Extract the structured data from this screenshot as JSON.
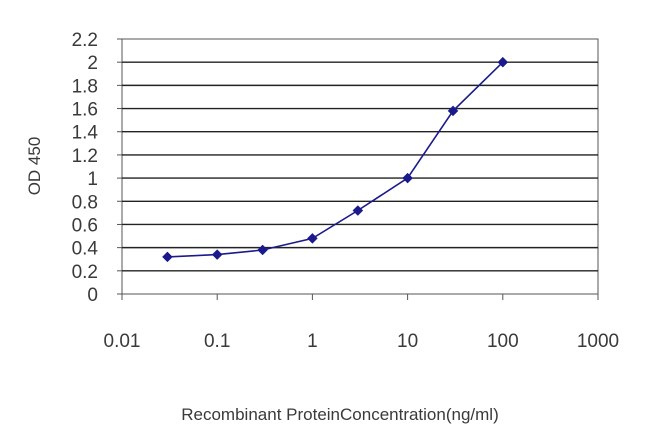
{
  "chart_data": {
    "type": "line",
    "title": "",
    "xlabel": "Recombinant ProteinConcentration(ng/ml)",
    "ylabel": "OD 450",
    "xscale": "log",
    "xlim": [
      0.01,
      1000
    ],
    "ylim": [
      0,
      2.2
    ],
    "grid": "horizontal",
    "legend": "none",
    "x_ticks": [
      "0.01",
      "0.1",
      "1",
      "10",
      "100",
      "1000"
    ],
    "y_ticks": [
      "0",
      "0.2",
      "0.4",
      "0.6",
      "0.8",
      "1",
      "1.2",
      "1.4",
      "1.6",
      "1.8",
      "2",
      "2.2"
    ],
    "series": [
      {
        "color": "#1a1a8c",
        "marker": "diamond",
        "x": [
          0.03,
          0.1,
          0.3,
          1,
          3,
          10,
          30,
          100
        ],
        "y": [
          0.32,
          0.34,
          0.38,
          0.48,
          0.72,
          1.0,
          1.58,
          2.0
        ]
      }
    ]
  }
}
